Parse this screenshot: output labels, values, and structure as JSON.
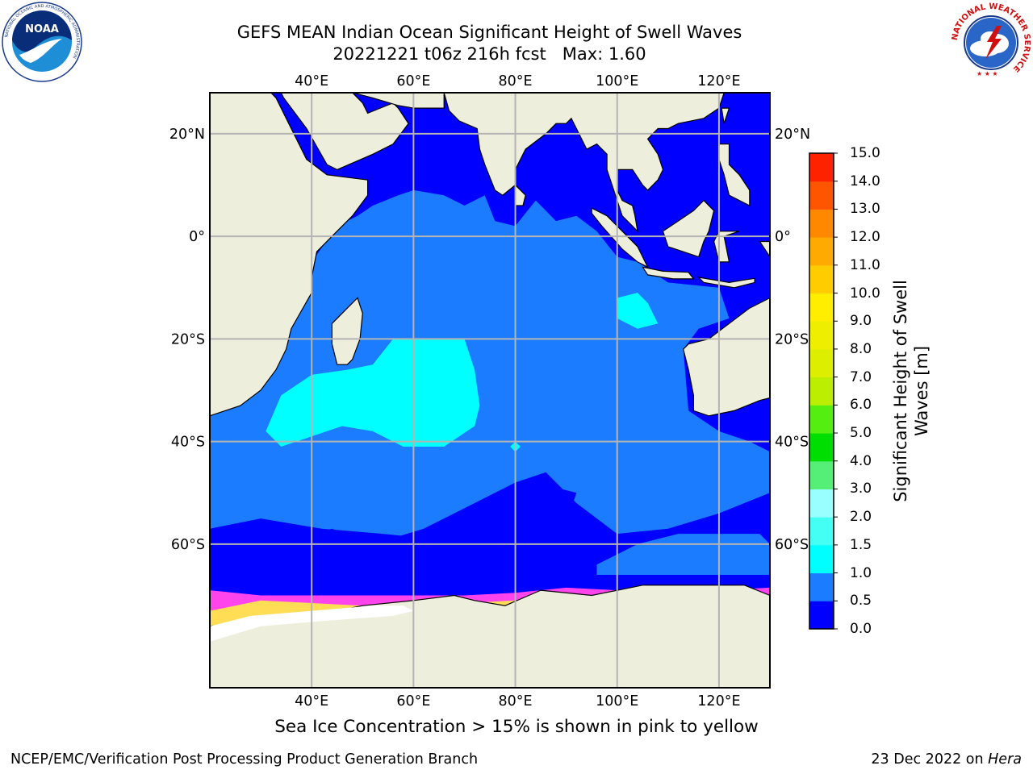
{
  "header": {
    "title": "GEFS MEAN Indian Ocean Significant Height of Swell Waves",
    "subtitle": "20221221 t06z 216h fcst   Max: 1.60"
  },
  "logos": {
    "noaa": {
      "name": "NOAA",
      "ring_text": "NATIONAL OCEANIC AND ATMOSPHERIC ADMINISTRATION",
      "ring_text_bottom": "U.S. DEPARTMENT OF COMMERCE"
    },
    "nws": {
      "ring_text": "NATIONAL WEATHER SERVICE"
    }
  },
  "map": {
    "projection": "cylindrical",
    "lon_range": [
      20,
      130
    ],
    "lat_range": [
      -88,
      28
    ],
    "grid": true,
    "lon_ticks": [
      "40°E",
      "60°E",
      "80°E",
      "100°E",
      "120°E"
    ],
    "lat_ticks": [
      "20°N",
      "0°",
      "20°S",
      "40°S",
      "60°S"
    ],
    "colors": {
      "land": "#eeeedd",
      "ice_free_land": "#ffffff",
      "grid": "#b4b4b4",
      "sea_ice_low": "#ff44ee",
      "sea_ice_high": "#ffdd55"
    }
  },
  "colorbar": {
    "label": "Significant Height of Swell\nWaves [m]",
    "ticks": [
      "0.0",
      "0.5",
      "1.0",
      "1.5",
      "2.0",
      "3.0",
      "4.0",
      "5.0",
      "6.0",
      "7.0",
      "8.0",
      "9.0",
      "10.0",
      "11.0",
      "12.0",
      "13.0",
      "14.0",
      "15.0"
    ],
    "bins": [
      {
        "from": 0.0,
        "to": 0.5,
        "color": "#0000ff"
      },
      {
        "from": 0.5,
        "to": 1.0,
        "color": "#1c7cff"
      },
      {
        "from": 1.0,
        "to": 1.5,
        "color": "#00ffff"
      },
      {
        "from": 1.5,
        "to": 2.0,
        "color": "#44fff4"
      },
      {
        "from": 2.0,
        "to": 3.0,
        "color": "#99ffff"
      },
      {
        "from": 3.0,
        "to": 4.0,
        "color": "#55ee77"
      },
      {
        "from": 4.0,
        "to": 5.0,
        "color": "#00dd00"
      },
      {
        "from": 5.0,
        "to": 6.0,
        "color": "#55ee11"
      },
      {
        "from": 6.0,
        "to": 7.0,
        "color": "#bbee00"
      },
      {
        "from": 7.0,
        "to": 8.0,
        "color": "#ddee00"
      },
      {
        "from": 8.0,
        "to": 9.0,
        "color": "#eeee00"
      },
      {
        "from": 9.0,
        "to": 10.0,
        "color": "#ffee00"
      },
      {
        "from": 10.0,
        "to": 11.0,
        "color": "#ffcc00"
      },
      {
        "from": 11.0,
        "to": 12.0,
        "color": "#ffaa00"
      },
      {
        "from": 12.0,
        "to": 13.0,
        "color": "#ff8800"
      },
      {
        "from": 13.0,
        "to": 14.0,
        "color": "#ff5500"
      },
      {
        "from": 14.0,
        "to": 15.0,
        "color": "#ff2200"
      },
      {
        "from": 15.0,
        "to": 15.0,
        "color": "#ff0000"
      }
    ]
  },
  "caption": "Sea Ice Concentration > 15% is shown in pink to yellow",
  "footer": {
    "left": "NCEP/EMC/Verification Post Processing Product Generation Branch",
    "right_prefix": "23 Dec 2022 on ",
    "right_host": "Hera"
  }
}
